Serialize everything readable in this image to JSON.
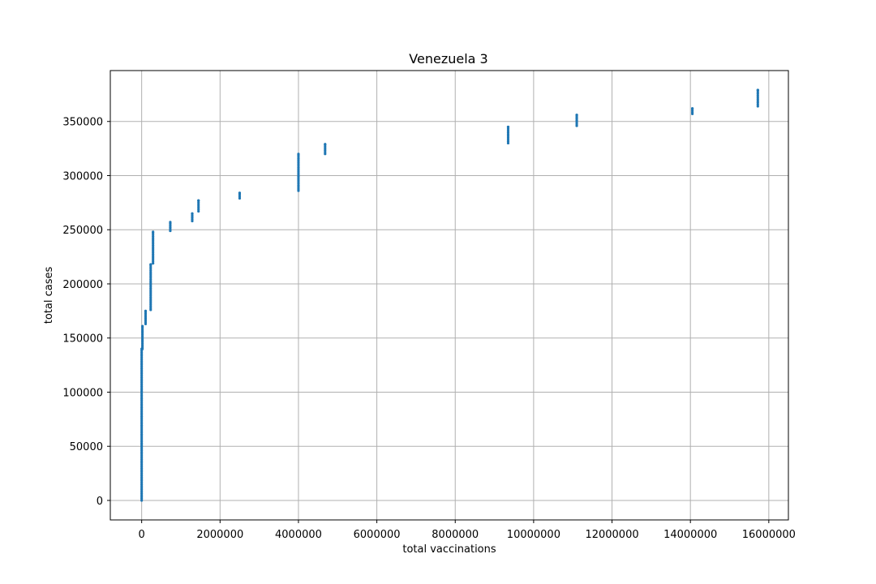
{
  "chart_data": {
    "type": "scatter",
    "title": "Venezuela 3",
    "xlabel": "total vaccinations",
    "ylabel": "total cases",
    "xlim": [
      -800000,
      16500000
    ],
    "ylim": [
      -18000,
      397000
    ],
    "xticks": [
      0,
      2000000,
      4000000,
      6000000,
      8000000,
      10000000,
      12000000,
      14000000,
      16000000
    ],
    "xtick_labels": [
      "0",
      "2000000",
      "4000000",
      "6000000",
      "8000000",
      "10000000",
      "12000000",
      "14000000",
      "16000000"
    ],
    "yticks": [
      0,
      50000,
      100000,
      150000,
      200000,
      250000,
      300000,
      350000
    ],
    "ytick_labels": [
      "0",
      "50000",
      "100000",
      "150000",
      "200000",
      "250000",
      "300000",
      "350000"
    ],
    "grid": true,
    "marker_color": "#1f77b4",
    "series": [
      {
        "clusters": [
          {
            "x": 0,
            "y_min": 0,
            "y_max": 140000
          },
          {
            "x": 20000,
            "y_min": 140000,
            "y_max": 161000
          },
          {
            "x": 100000,
            "y_min": 163000,
            "y_max": 175000
          },
          {
            "x": 230000,
            "y_min": 176000,
            "y_max": 218000
          },
          {
            "x": 290000,
            "y_min": 219000,
            "y_max": 248000
          },
          {
            "x": 730000,
            "y_min": 249000,
            "y_max": 257000
          },
          {
            "x": 1290000,
            "y_min": 258000,
            "y_max": 265000
          },
          {
            "x": 1450000,
            "y_min": 267000,
            "y_max": 277000
          },
          {
            "x": 2500000,
            "y_min": 279000,
            "y_max": 284000
          },
          {
            "x": 4000000,
            "y_min": 286000,
            "y_max": 320000
          },
          {
            "x": 4680000,
            "y_min": 320000,
            "y_max": 329000
          },
          {
            "x": 9350000,
            "y_min": 330000,
            "y_max": 345000
          },
          {
            "x": 11100000,
            "y_min": 346000,
            "y_max": 356000
          },
          {
            "x": 14050000,
            "y_min": 357000,
            "y_max": 362000
          },
          {
            "x": 15720000,
            "y_min": 364000,
            "y_max": 379000
          }
        ]
      }
    ]
  }
}
